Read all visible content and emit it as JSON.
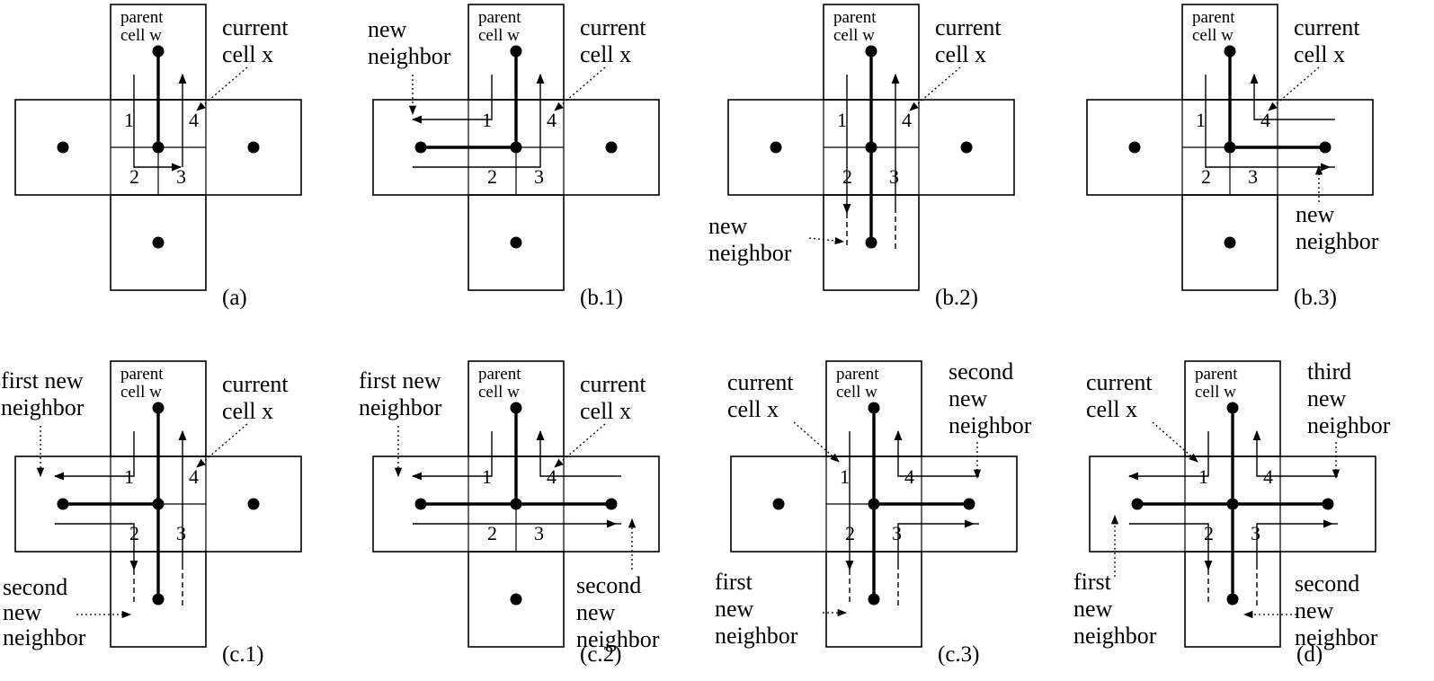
{
  "panels": [
    {
      "id": "a",
      "caption": "(a)",
      "labels": {
        "parent": [
          "parent",
          "cell w"
        ],
        "current": [
          "current",
          "cell x"
        ]
      },
      "quadrants": [
        "1",
        "2",
        "3",
        "4"
      ]
    },
    {
      "id": "b1",
      "caption": "(b.1)",
      "labels": {
        "parent": [
          "parent",
          "cell w"
        ],
        "current": [
          "current",
          "cell x"
        ],
        "new": [
          "new",
          "neighbor"
        ]
      },
      "quadrants": [
        "1",
        "2",
        "3",
        "4"
      ]
    },
    {
      "id": "b2",
      "caption": "(b.2)",
      "labels": {
        "parent": [
          "parent",
          "cell w"
        ],
        "current": [
          "current",
          "cell x"
        ],
        "new": [
          "new",
          "neighbor"
        ]
      },
      "quadrants": [
        "1",
        "2",
        "3",
        "4"
      ]
    },
    {
      "id": "b3",
      "caption": "(b.3)",
      "labels": {
        "parent": [
          "parent",
          "cell w"
        ],
        "current": [
          "current",
          "cell x"
        ],
        "new": [
          "new",
          "neighbor"
        ]
      },
      "quadrants": [
        "1",
        "2",
        "3",
        "4"
      ]
    },
    {
      "id": "c1",
      "caption": "(c.1)",
      "labels": {
        "parent": [
          "parent",
          "cell w"
        ],
        "current": [
          "current",
          "cell x"
        ],
        "first": [
          "first new",
          "neighbor"
        ],
        "second": [
          "second",
          "new",
          "neighbor"
        ]
      },
      "quadrants": [
        "1",
        "2",
        "3",
        "4"
      ]
    },
    {
      "id": "c2",
      "caption": "(c.2)",
      "labels": {
        "parent": [
          "parent",
          "cell w"
        ],
        "current": [
          "current",
          "cell x"
        ],
        "first": [
          "first new",
          "neighbor"
        ],
        "second": [
          "second",
          "new",
          "neighbor"
        ]
      },
      "quadrants": [
        "1",
        "2",
        "3",
        "4"
      ]
    },
    {
      "id": "c3",
      "caption": "(c.3)",
      "labels": {
        "parent": [
          "parent",
          "cell w"
        ],
        "current": [
          "current",
          "cell x"
        ],
        "first": [
          "first",
          "new",
          "neighbor"
        ],
        "second": [
          "second",
          "new",
          "neighbor"
        ]
      },
      "quadrants": [
        "1",
        "2",
        "3",
        "4"
      ]
    },
    {
      "id": "d",
      "caption": "(d)",
      "labels": {
        "parent": [
          "parent",
          "cell w"
        ],
        "current": [
          "current",
          "cell x"
        ],
        "first": [
          "first",
          "new",
          "neighbor"
        ],
        "second": [
          "second",
          "new",
          "neighbor"
        ],
        "third": [
          "third",
          "new",
          "neighbor"
        ]
      },
      "quadrants": [
        "1",
        "2",
        "3",
        "4"
      ]
    }
  ]
}
